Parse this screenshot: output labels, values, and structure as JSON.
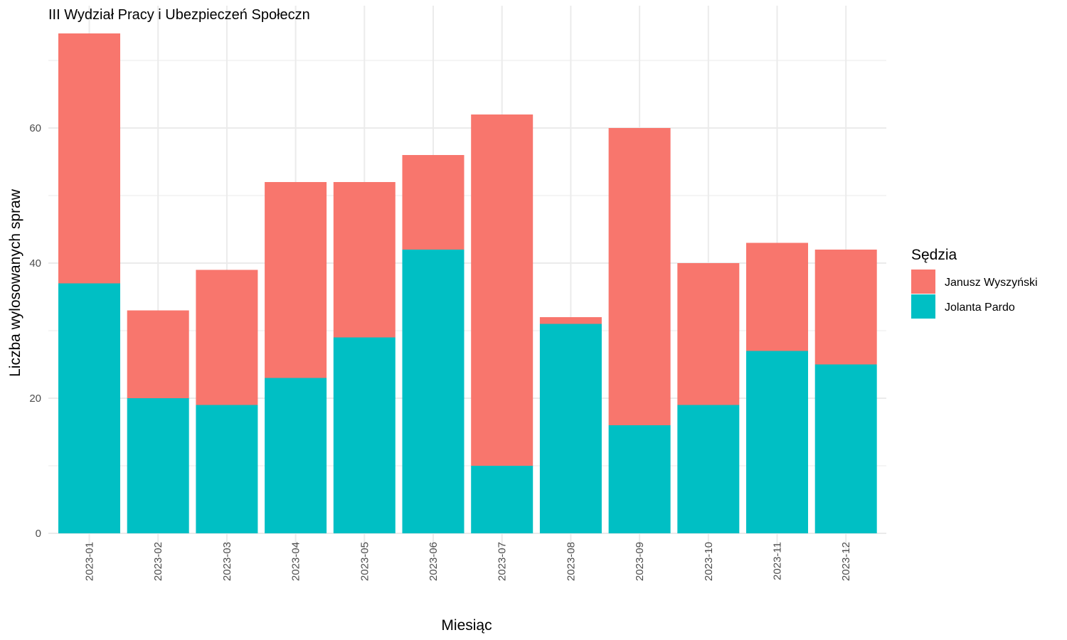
{
  "chart_data": {
    "type": "bar",
    "stacked": true,
    "title": "III Wydział Pracy i Ubezpieczeń Społeczn",
    "xlabel": "Miesiąc",
    "ylabel": "Liczba wylosowanych spraw",
    "categories": [
      "2023-01",
      "2023-02",
      "2023-03",
      "2023-04",
      "2023-05",
      "2023-06",
      "2023-07",
      "2023-08",
      "2023-09",
      "2023-10",
      "2023-11",
      "2023-12"
    ],
    "series": [
      {
        "name": "Jolanta Pardo",
        "color": "#00BFC4",
        "values": [
          37,
          20,
          19,
          23,
          29,
          42,
          10,
          31,
          16,
          19,
          27,
          25
        ]
      },
      {
        "name": "Janusz Wyszyński",
        "color": "#F8766D",
        "values": [
          37,
          13,
          20,
          29,
          23,
          14,
          52,
          1,
          44,
          21,
          16,
          17
        ]
      }
    ],
    "ylim": [
      0,
      74
    ],
    "yticks": [
      0,
      20,
      40,
      60
    ],
    "grid": true,
    "legend": {
      "title": "Sędzia",
      "position": "right",
      "order": [
        "Janusz Wyszyński",
        "Jolanta Pardo"
      ]
    }
  }
}
